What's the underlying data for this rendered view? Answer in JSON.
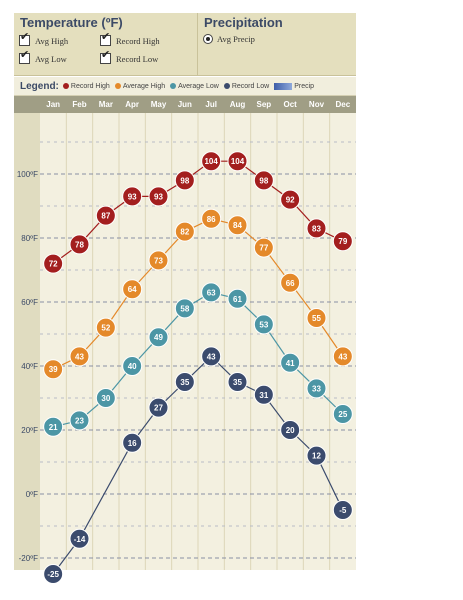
{
  "temperature_panel": {
    "title": "Temperature (ºF)",
    "options": [
      {
        "label": "Avg High",
        "checked": true
      },
      {
        "label": "Record High",
        "checked": true
      },
      {
        "label": "Avg Low",
        "checked": true
      },
      {
        "label": "Record Low",
        "checked": true
      }
    ]
  },
  "precipitation_panel": {
    "title": "Precipitation",
    "option_label": "Avg Precip",
    "selected": true
  },
  "legend": {
    "title": "Legend:",
    "items": [
      {
        "label": "Record High",
        "color": "#a31e1e"
      },
      {
        "label": "Average High",
        "color": "#e4892a"
      },
      {
        "label": "Average Low",
        "color": "#4c96a5"
      },
      {
        "label": "Record Low",
        "color": "#3b4b6d"
      }
    ],
    "precip_label": "Precip"
  },
  "chart_data": {
    "type": "line",
    "categories": [
      "Jan",
      "Feb",
      "Mar",
      "Apr",
      "May",
      "Jun",
      "Jul",
      "Aug",
      "Sep",
      "Oct",
      "Nov",
      "Dec"
    ],
    "y_ticks": [
      "100ºF",
      "80ºF",
      "60ºF",
      "40ºF",
      "20ºF",
      "0ºF",
      "-20ºF"
    ],
    "y_tick_values": [
      100,
      80,
      60,
      40,
      20,
      0,
      -20
    ],
    "ylim": [
      -22,
      110
    ],
    "grid": true,
    "series": [
      {
        "name": "Record High",
        "color": "#a31e1e",
        "values": [
          72,
          78,
          87,
          93,
          93,
          98,
          104,
          104,
          98,
          92,
          83,
          79
        ]
      },
      {
        "name": "Average High",
        "color": "#e4892a",
        "values": [
          39,
          43,
          52,
          64,
          73,
          82,
          86,
          84,
          77,
          66,
          55,
          43
        ]
      },
      {
        "name": "Average Low",
        "color": "#4c96a5",
        "values": [
          21,
          23,
          30,
          40,
          49,
          58,
          63,
          61,
          53,
          41,
          33,
          25
        ]
      },
      {
        "name": "Record Low",
        "color": "#3b4b6d",
        "values": [
          -25,
          -14,
          null,
          16,
          27,
          35,
          43,
          35,
          31,
          20,
          12,
          -5
        ]
      }
    ]
  }
}
